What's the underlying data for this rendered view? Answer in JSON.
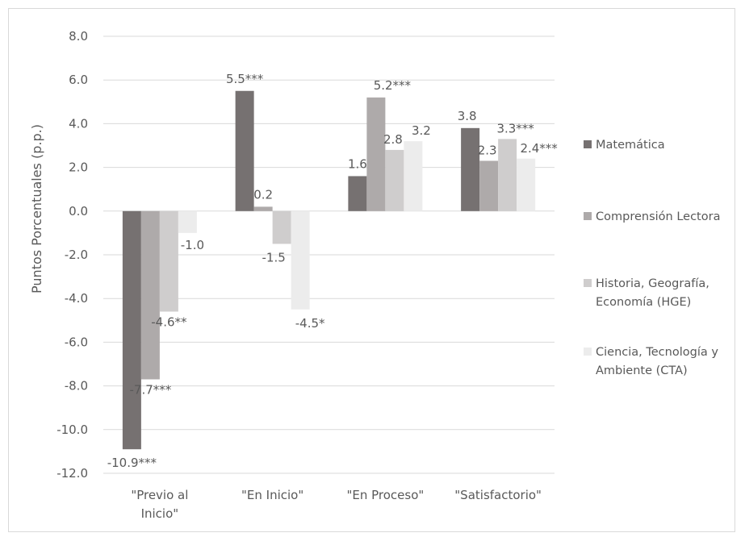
{
  "chart_data": {
    "type": "bar",
    "title": "",
    "xlabel": "",
    "ylabel": "Puntos Porcentuales (p.p.)",
    "ylim": [
      -12,
      8
    ],
    "yticks": [
      "8.0",
      "6.0",
      "4.0",
      "2.0",
      "0.0",
      "-2.0",
      "-4.0",
      "-6.0",
      "-8.0",
      "-10.0",
      "-12.0"
    ],
    "categories": [
      [
        "\"Previo al",
        "Inicio\""
      ],
      [
        "\"En Inicio\""
      ],
      [
        "\"En Proceso\""
      ],
      [
        "\"Satisfactorio\""
      ]
    ],
    "grid": true,
    "legend_position": "right",
    "series": [
      {
        "name": "Matemática",
        "legend_lines": [
          "Matemática"
        ],
        "color": "#767171",
        "values": [
          -10.9,
          5.5,
          1.6,
          3.8
        ],
        "labels": [
          "-10.9***",
          "5.5***",
          "1.6",
          "3.8"
        ]
      },
      {
        "name": "Comprensión Lectora",
        "legend_lines": [
          "Comprensión Lectora"
        ],
        "color": "#aeaaaa",
        "values": [
          -7.7,
          0.2,
          5.2,
          2.3
        ],
        "labels": [
          "-7.7***",
          "0.2",
          "5.2***",
          "2.3"
        ]
      },
      {
        "name": "Historia, Geografía, Economía (HGE)",
        "legend_lines": [
          "Historia, Geografía,",
          "Economía (HGE)"
        ],
        "color": "#cfcdcd",
        "values": [
          -4.6,
          -1.5,
          2.8,
          3.3
        ],
        "labels": [
          "-4.6**",
          "-1.5",
          "2.8",
          "3.3***"
        ]
      },
      {
        "name": "Ciencia, Tecnología y Ambiente (CTA)",
        "legend_lines": [
          "Ciencia, Tecnología y",
          "Ambiente (CTA)"
        ],
        "color": "#ececec",
        "values": [
          -1.0,
          -4.5,
          3.2,
          2.4
        ],
        "labels": [
          "-1.0",
          "-4.5*",
          "3.2",
          "2.4***"
        ]
      }
    ]
  }
}
